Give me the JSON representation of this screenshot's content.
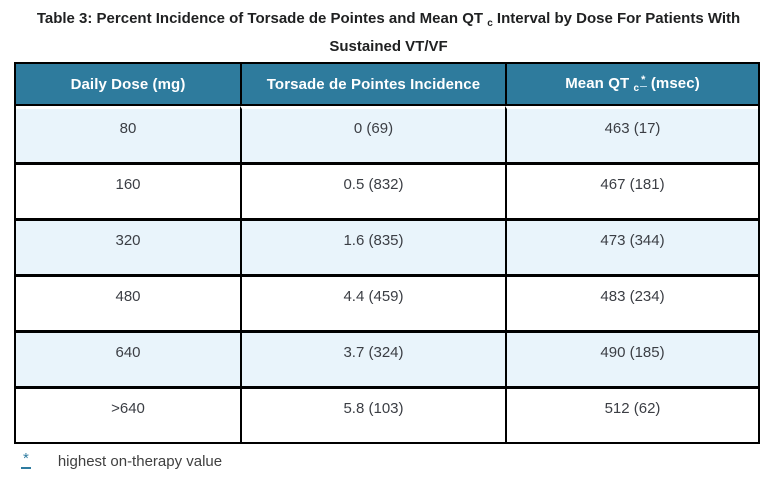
{
  "title": {
    "line1_before_sub": "Table 3: Percent Incidence of Torsade de Pointes and Mean QT ",
    "line1_sub": "c",
    "line1_after_sub": " Interval by Dose For Patients With",
    "line2": "Sustained VT/VF"
  },
  "table": {
    "headers": {
      "col1": "Daily Dose (mg)",
      "col2": "Torsade de Pointes Incidence",
      "col3_before_sub": "Mean QT ",
      "col3_sub": "c",
      "col3_footnote_ref": "*",
      "col3_after": " (msec)"
    },
    "rows": [
      {
        "dose": "80",
        "tdp_incidence": "0 (69)",
        "mean_qtc": "463 (17)"
      },
      {
        "dose": "160",
        "tdp_incidence": "0.5 (832)",
        "mean_qtc": "467 (181)"
      },
      {
        "dose": "320",
        "tdp_incidence": "1.6 (835)",
        "mean_qtc": "473 (344)"
      },
      {
        "dose": "480",
        "tdp_incidence": "4.4 (459)",
        "mean_qtc": "483 (234)"
      },
      {
        "dose": "640",
        "tdp_incidence": "3.7 (324)",
        "mean_qtc": "490 (185)"
      },
      {
        "dose": ">640",
        "tdp_incidence": "5.8 (103)",
        "mean_qtc": "512 (62)"
      }
    ]
  },
  "footnote": {
    "marker": "*",
    "text": "highest on-therapy value"
  },
  "colors": {
    "header_bg": "#2e7b9d",
    "alt_row_bg": "#e9f4fb",
    "border": "#000000",
    "link": "#2e7ba0",
    "title_text": "#1f2021",
    "cell_text": "#3b3e44"
  }
}
